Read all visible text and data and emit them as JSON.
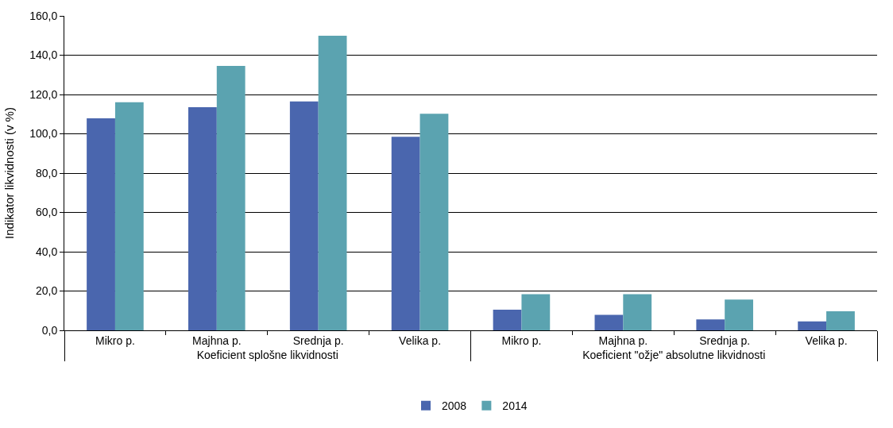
{
  "chart_data": {
    "type": "bar",
    "ylabel": "Indikator likvidnosti (v %)",
    "categories": [
      "Mikro p.",
      "Majhna p.",
      "Srednja p.",
      "Velika p.",
      "Mikro p.",
      "Majhna p.",
      "Srednja p.",
      "Velika p."
    ],
    "annotations": [
      "Koeficient splošne likvidnosti",
      "Koeficient \"ožje\" absolutne likvidnosti"
    ],
    "series": [
      {
        "name": "2008",
        "color": "#4a66ae",
        "values": [
          107.9,
          113.5,
          116.5,
          98.5,
          10.5,
          7.9,
          5.6,
          4.5
        ]
      },
      {
        "name": "2014",
        "color": "#5ba3b0",
        "values": [
          116.1,
          134.5,
          149.9,
          110.2,
          18.4,
          18.4,
          15.7,
          9.7
        ]
      }
    ],
    "ylim": [
      0,
      160
    ],
    "yticks": [
      {
        "value": 0,
        "label": "0,0"
      },
      {
        "value": 20,
        "label": "20,0"
      },
      {
        "value": 40,
        "label": "40,0"
      },
      {
        "value": 60,
        "label": "60,0"
      },
      {
        "value": 80,
        "label": "80,0"
      },
      {
        "value": 100,
        "label": "100,0"
      },
      {
        "value": 120,
        "label": "120,0"
      },
      {
        "value": 140,
        "label": "140,0"
      },
      {
        "value": 160,
        "label": "160,0"
      }
    ],
    "grid": "y",
    "legend": "bottom"
  }
}
